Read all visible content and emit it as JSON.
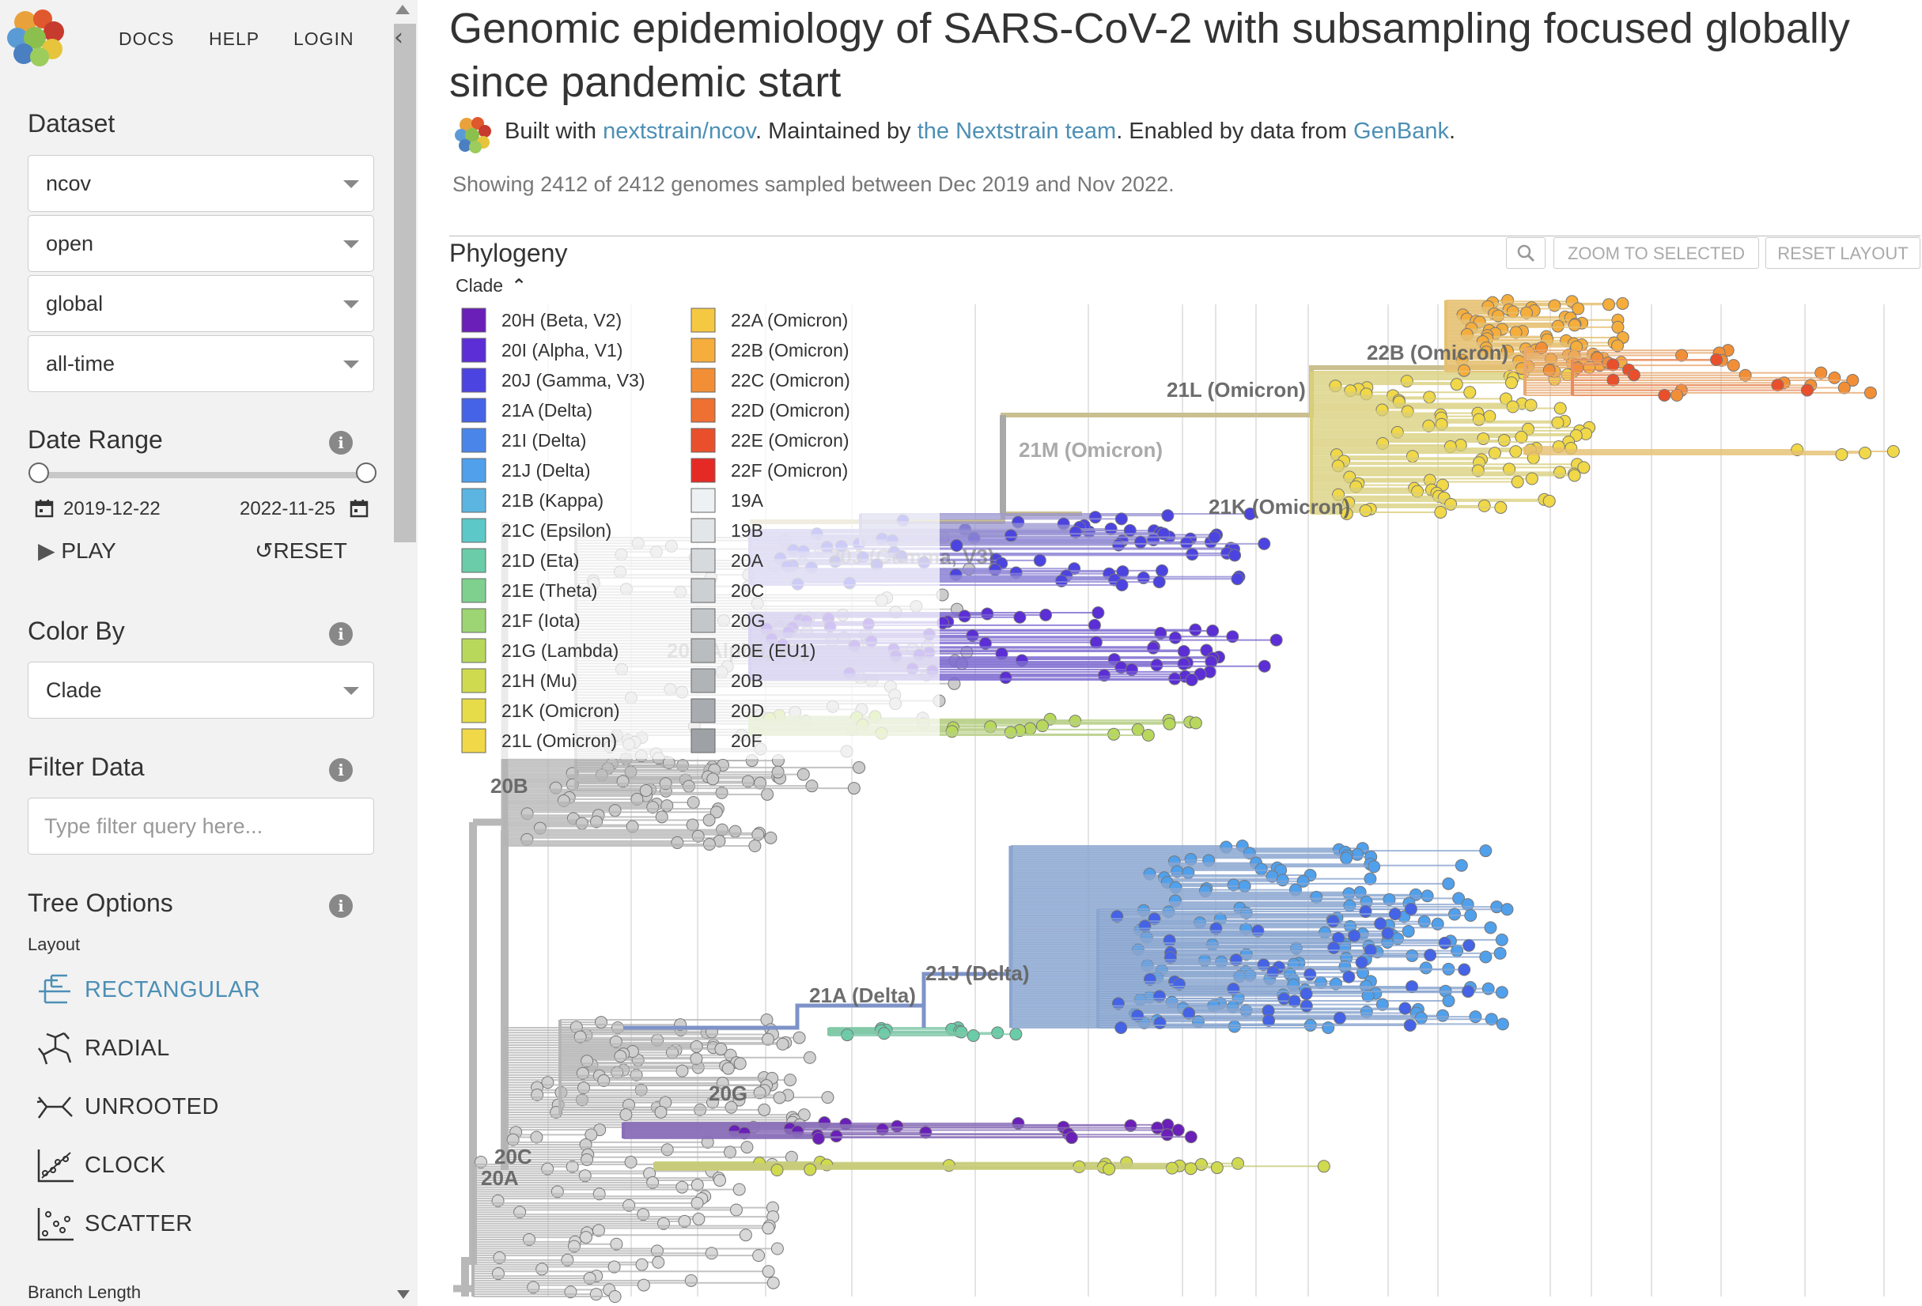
{
  "nav": {
    "docs": "DOCS",
    "help": "HELP",
    "login": "LOGIN"
  },
  "dataset": {
    "heading": "Dataset",
    "selects": [
      "ncov",
      "open",
      "global",
      "all-time"
    ]
  },
  "date_range": {
    "heading": "Date Range",
    "start": "2019-12-22",
    "end": "2022-11-25",
    "play": "PLAY",
    "reset": "RESET"
  },
  "color_by": {
    "heading": "Color By",
    "value": "Clade"
  },
  "filter": {
    "heading": "Filter Data",
    "placeholder": "Type filter query here..."
  },
  "tree_options": {
    "heading": "Tree Options",
    "layout_label": "Layout",
    "layouts": [
      "RECTANGULAR",
      "RADIAL",
      "UNROOTED",
      "CLOCK",
      "SCATTER"
    ],
    "selected_layout": "RECTANGULAR",
    "branch_length_label": "Branch Length"
  },
  "header": {
    "title": "Genomic epidemiology of SARS-CoV-2 with subsampling focused globally since pandemic start",
    "byline_pre": "Built with ",
    "byline_link1": "nextstrain/ncov",
    "byline_mid": ". Maintained by ",
    "byline_link2": "the Nextstrain team",
    "byline_mid2": ". Enabled by data from ",
    "byline_link3": "GenBank",
    "byline_post": ".",
    "showing": "Showing 2412 of 2412 genomes sampled between Dec 2019 and Nov 2022."
  },
  "panel": {
    "title": "Phylogeny",
    "zoom_selected": "ZOOM TO SELECTED",
    "reset_layout": "RESET LAYOUT",
    "legend_toggle": "Clade"
  },
  "colors": {
    "accent": "#4d8fb5",
    "sidebar_bg": "#f2f2f2"
  },
  "legend": [
    {
      "label": "20H (Beta, V2)",
      "color": "#6a1fb8"
    },
    {
      "label": "20I (Alpha, V1)",
      "color": "#5b2ed6"
    },
    {
      "label": "20J (Gamma, V3)",
      "color": "#4c44e0"
    },
    {
      "label": "21A (Delta)",
      "color": "#4563e6"
    },
    {
      "label": "21I (Delta)",
      "color": "#4a86ea"
    },
    {
      "label": "21J (Delta)",
      "color": "#50a0ec"
    },
    {
      "label": "21B (Kappa)",
      "color": "#5bb5e0"
    },
    {
      "label": "21C (Epsilon)",
      "color": "#5dc8c8"
    },
    {
      "label": "21D (Eta)",
      "color": "#6acca8"
    },
    {
      "label": "21E (Theta)",
      "color": "#7fd08e"
    },
    {
      "label": "21F (Iota)",
      "color": "#9dd474"
    },
    {
      "label": "21G (Lambda)",
      "color": "#b8d85c"
    },
    {
      "label": "21H (Mu)",
      "color": "#d0da4e"
    },
    {
      "label": "21K (Omicron)",
      "color": "#e6dc4a"
    },
    {
      "label": "21L (Omicron)",
      "color": "#f0d848"
    },
    {
      "label": "22A (Omicron)",
      "color": "#f5c842"
    },
    {
      "label": "22B (Omicron)",
      "color": "#f5ad3c"
    },
    {
      "label": "22C (Omicron)",
      "color": "#f28f36"
    },
    {
      "label": "22D (Omicron)",
      "color": "#ee7032"
    },
    {
      "label": "22E (Omicron)",
      "color": "#ea4f2c"
    },
    {
      "label": "22F (Omicron)",
      "color": "#e52a26"
    },
    {
      "label": "19A",
      "color": "#eef1f3"
    },
    {
      "label": "19B",
      "color": "#e3e6e8"
    },
    {
      "label": "20A",
      "color": "#d7dadd"
    },
    {
      "label": "20C",
      "color": "#cdd0d3"
    },
    {
      "label": "20G",
      "color": "#c4c7ca"
    },
    {
      "label": "20E (EU1)",
      "color": "#babdc0"
    },
    {
      "label": "20B",
      "color": "#b1b4b7"
    },
    {
      "label": "20D",
      "color": "#a8abaf"
    },
    {
      "label": "20F",
      "color": "#9ea1a5"
    }
  ],
  "clade_labels": [
    "22B (Omicron)",
    "21L (Omicron)",
    "21M (Omicron)",
    "21K (Omicron)",
    "20J (Gamma, V3)",
    "20I (Alpha, V1)",
    "20B",
    "21J (Delta)",
    "21A (Delta)",
    "20G",
    "20C",
    "20A"
  ]
}
